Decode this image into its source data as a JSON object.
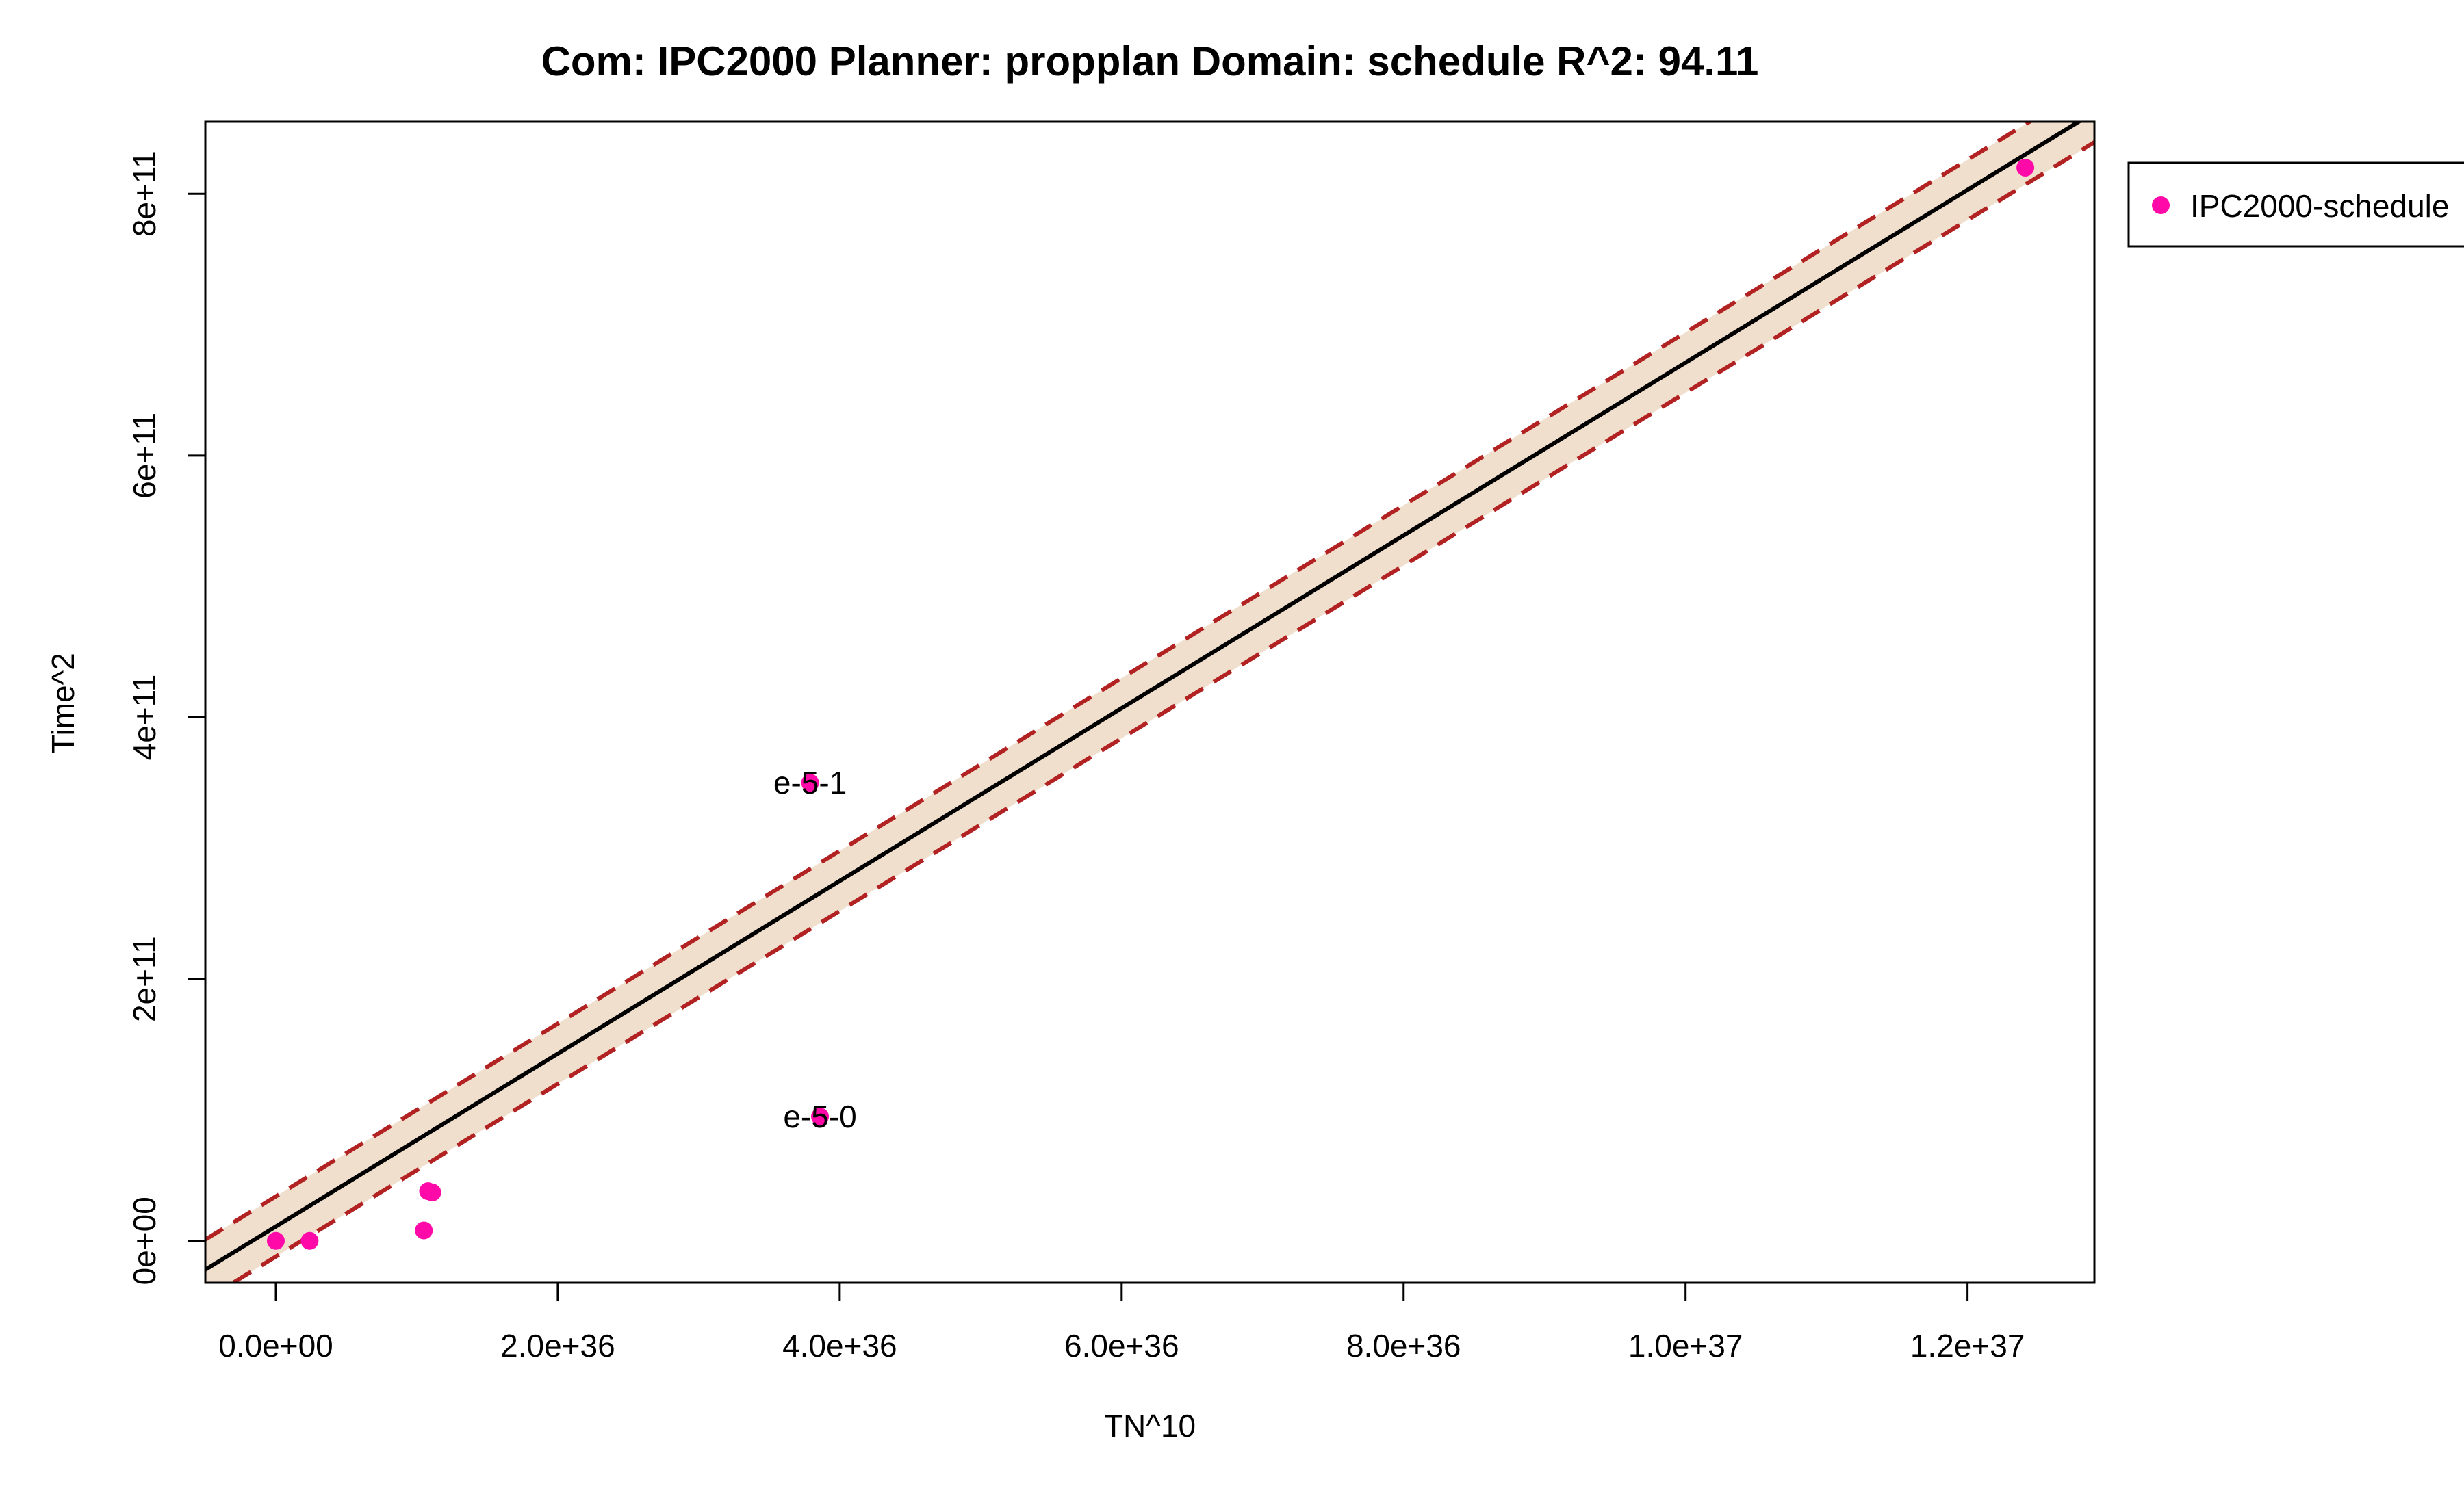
{
  "chart_data": {
    "type": "scatter",
    "title": "Com: IPC2000 Planner: propplan Domain: schedule R^2: 94.11",
    "xlabel": "TN^10",
    "ylabel": "Time^2",
    "xlim": [
      -5e+35,
      1.29e+37
    ],
    "ylim": [
      -32000000000.0,
      855000000000.0
    ],
    "x_ticks": [
      {
        "value": 0,
        "label": "0.0e+00"
      },
      {
        "value": 2e+36,
        "label": "2.0e+36"
      },
      {
        "value": 4e+36,
        "label": "4.0e+36"
      },
      {
        "value": 6e+36,
        "label": "6.0e+36"
      },
      {
        "value": 8e+36,
        "label": "8.0e+36"
      },
      {
        "value": 1e+37,
        "label": "1.0e+37"
      },
      {
        "value": 1.2e+37,
        "label": "1.2e+37"
      }
    ],
    "y_ticks": [
      {
        "value": 0,
        "label": "0e+00"
      },
      {
        "value": 200000000000.0,
        "label": "2e+11"
      },
      {
        "value": 400000000000.0,
        "label": "4e+11"
      },
      {
        "value": 600000000000.0,
        "label": "6e+11"
      },
      {
        "value": 800000000000.0,
        "label": "8e+11"
      }
    ],
    "series": [
      {
        "name": "IPC2000-schedule",
        "color": "#ff0aa8",
        "points": [
          {
            "x": 0.0,
            "y": 0.0
          },
          {
            "x": 2.4e+35,
            "y": 0.0
          },
          {
            "x": 1.05e+36,
            "y": 8000000000.0
          },
          {
            "x": 1.08e+36,
            "y": 38000000000.0
          },
          {
            "x": 1.11e+36,
            "y": 37000000000.0
          },
          {
            "x": 3.79e+36,
            "y": 350000000000.0
          },
          {
            "x": 3.86e+36,
            "y": 95000000000.0
          },
          {
            "x": 1.241e+37,
            "y": 820000000000.0
          }
        ]
      }
    ],
    "fit": {
      "slope": 6.6e-26,
      "intercept": 11000000000.0,
      "band_halfwidth": 23000000000.0,
      "line_color": "#000000",
      "band_color": "#efdfcc",
      "bound_color": "#b22222"
    },
    "annotations": [
      {
        "text": "e-5-1",
        "x": 3.79e+36,
        "y": 350000000000.0
      },
      {
        "text": "e-5-0",
        "x": 3.86e+36,
        "y": 95000000000.0
      }
    ],
    "legend": {
      "position": "outside-top-right",
      "entries": [
        "IPC2000-schedule"
      ]
    },
    "grid": false
  }
}
